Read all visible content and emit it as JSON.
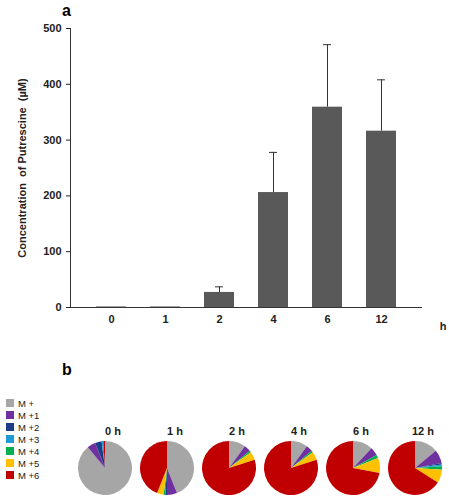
{
  "chart_data": [
    {
      "type": "bar",
      "title": "a",
      "categories": [
        "0",
        "1",
        "2",
        "4",
        "6",
        "12"
      ],
      "values": [
        1,
        1,
        27,
        206,
        359,
        316
      ],
      "errors": [
        0,
        0,
        10,
        72,
        112,
        92
      ],
      "color": "#595959",
      "x_label": "h",
      "y_label": "Concentration  of Putrescine  (µM)",
      "ylim": [
        0,
        500
      ],
      "yticks": [
        0,
        100,
        200,
        300,
        400,
        500
      ],
      "grid": false
    },
    {
      "type": "pie",
      "title": "b",
      "categories": [
        "M +",
        "M +1",
        "M +2",
        "M +3",
        "M +4",
        "M +5",
        "M +6"
      ],
      "colors": [
        "#a6a6a6",
        "#7030a0",
        "#1f3c88",
        "#1f9bd7",
        "#00b050",
        "#ffc000",
        "#c00000"
      ],
      "legend": "left",
      "series": [
        {
          "name": "0 h",
          "values": [
            89,
            5,
            4,
            1,
            0,
            0,
            1
          ]
        },
        {
          "name": "1 h",
          "values": [
            44,
            6,
            1,
            0,
            1,
            4,
            44
          ]
        },
        {
          "name": "2 h",
          "values": [
            10,
            4,
            0,
            0,
            1,
            5,
            80
          ]
        },
        {
          "name": "4 h",
          "values": [
            10,
            4,
            0,
            0,
            1,
            5,
            80
          ]
        },
        {
          "name": "6 h",
          "values": [
            12,
            5,
            0,
            0,
            2,
            9,
            72
          ]
        },
        {
          "name": "12 h",
          "values": [
            14,
            8,
            1,
            1,
            2,
            8,
            66
          ]
        }
      ]
    }
  ]
}
